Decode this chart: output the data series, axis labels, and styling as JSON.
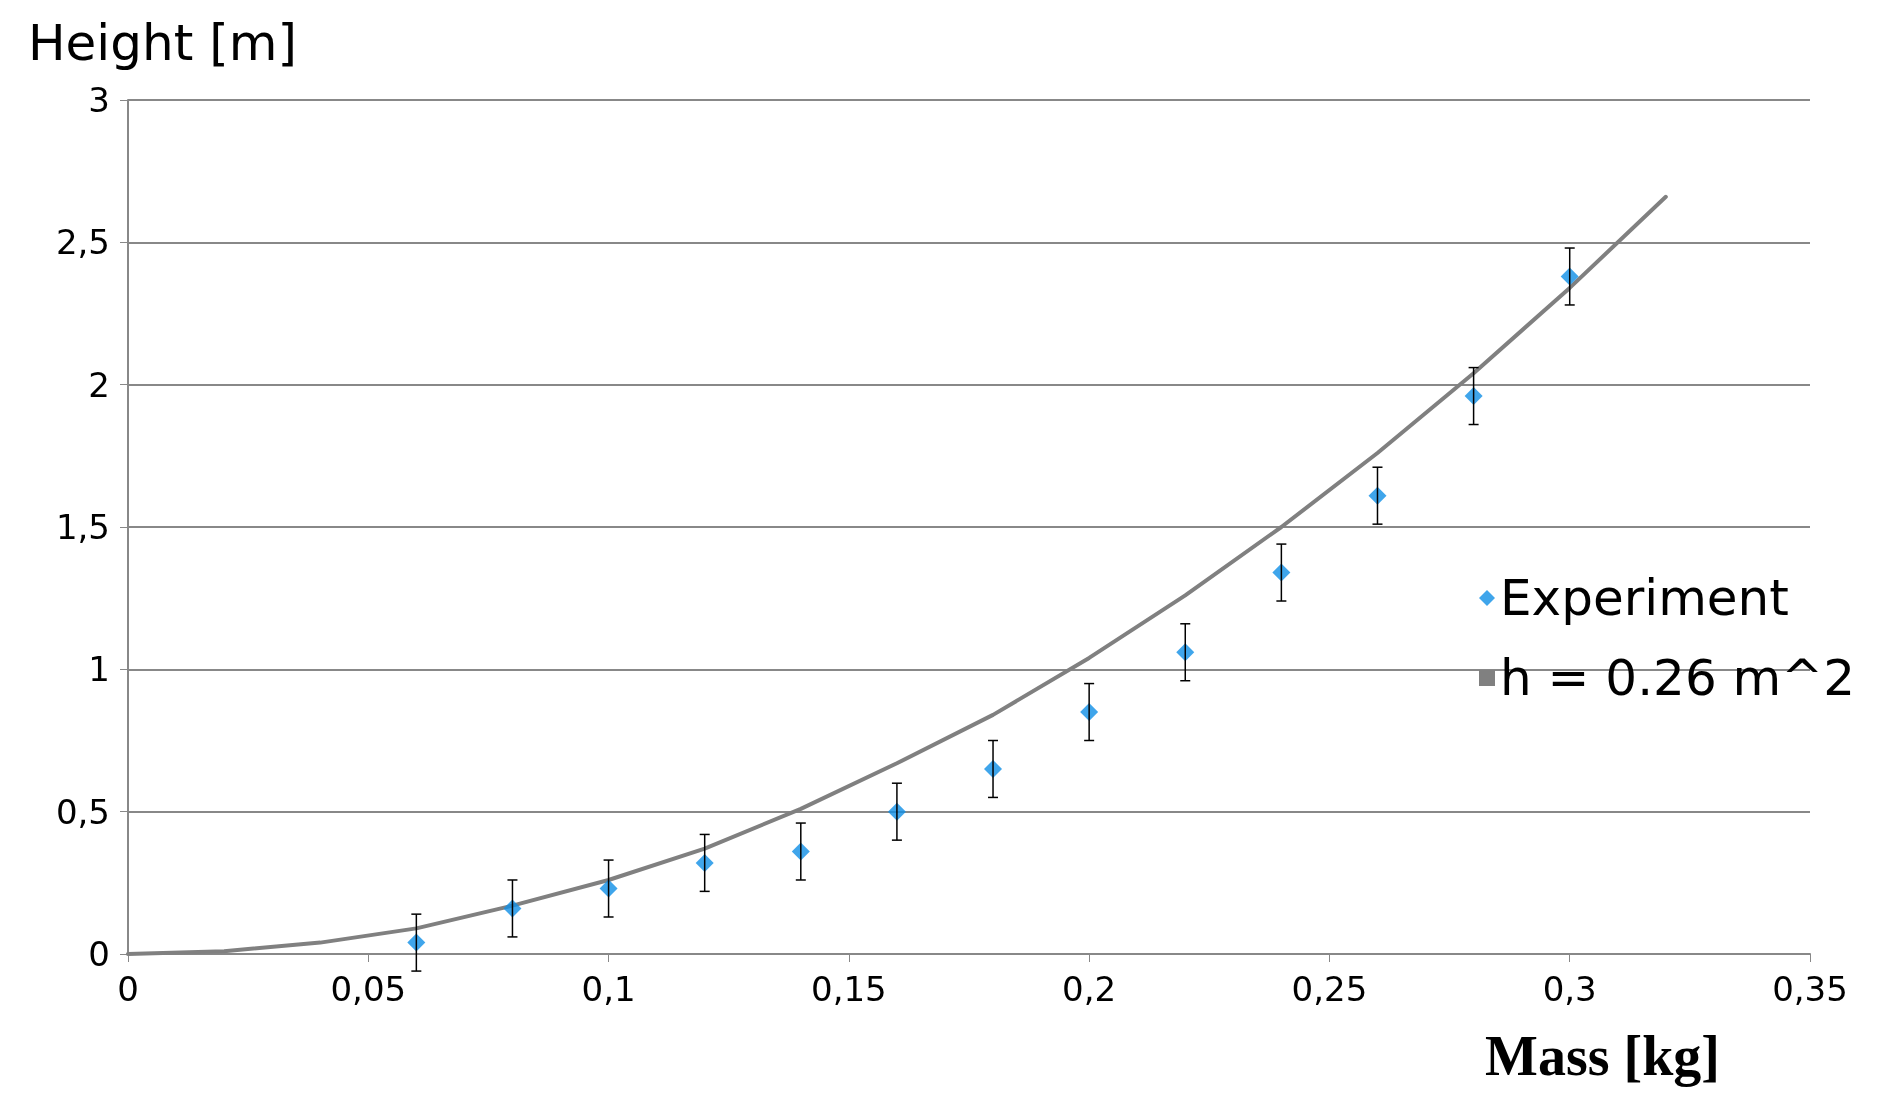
{
  "chart_data": {
    "type": "scatter",
    "xlabel": "Mass [kg]",
    "ylabel": "Height [m]",
    "xlim": [
      0,
      0.35
    ],
    "xticks": [
      0,
      {
        "value": 0.05,
        "label": "0,05"
      },
      {
        "value": 0.1,
        "label": "0,1"
      },
      {
        "value": 0.15,
        "label": "0,15"
      },
      {
        "value": 0.2,
        "label": "0,2"
      },
      {
        "value": 0.25,
        "label": "0,25"
      },
      {
        "value": 0.3,
        "label": "0,3"
      },
      {
        "value": 0.35,
        "label": "0,35"
      }
    ],
    "ylim": [
      0,
      3
    ],
    "yticks": [
      0,
      {
        "value": 0.5,
        "label": "0,5"
      },
      1,
      {
        "value": 1.5,
        "label": "1,5"
      },
      2,
      {
        "value": 2.5,
        "label": "2,5"
      },
      3
    ],
    "grid": "y",
    "legend": "right",
    "series": [
      {
        "name": "Experiment",
        "color": "#0f8ee6",
        "marker": "diamond",
        "x": [
          0.06,
          0.08,
          0.1,
          0.12,
          0.14,
          0.16,
          0.18,
          0.2,
          0.22,
          0.24,
          0.26,
          0.28,
          0.3
        ],
        "values": [
          0.04,
          0.16,
          0.23,
          0.32,
          0.36,
          0.5,
          0.65,
          0.85,
          1.06,
          1.34,
          1.61,
          1.96,
          2.38
        ],
        "errors": [
          0.1,
          0.1,
          0.1,
          0.1,
          0.1,
          0.1,
          0.1,
          0.1,
          0.1,
          0.1,
          0.1,
          0.1,
          0.1
        ]
      },
      {
        "name": "h = 0.26 m^2",
        "type": "line",
        "color": "#808080",
        "marker": "none",
        "line_style": "solid",
        "x": [
          0,
          0.02,
          0.04,
          0.06,
          0.08,
          0.1,
          0.12,
          0.14,
          0.16,
          0.18,
          0.2,
          0.22,
          0.24,
          0.26,
          0.28,
          0.3,
          0.32
        ],
        "values": [
          0,
          0.01,
          0.04,
          0.09,
          0.17,
          0.26,
          0.37,
          0.51,
          0.67,
          0.84,
          1.04,
          1.26,
          1.5,
          1.76,
          2.04,
          2.34,
          2.66
        ]
      }
    ]
  }
}
